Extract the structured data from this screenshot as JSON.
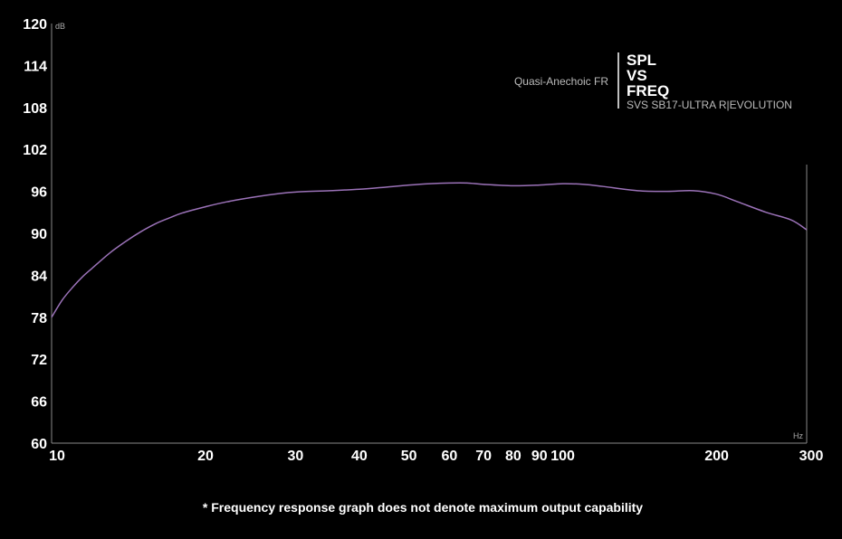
{
  "chart_data": {
    "type": "line",
    "subtitle": "Quasi-Anechoic FR",
    "title_lines": [
      "SPL",
      "VS",
      "FREQ"
    ],
    "model": "SVS SB17-ULTRA R|EVOLUTION",
    "ylabel": "dB",
    "xlabel": "Hz",
    "ylim": [
      60,
      120
    ],
    "xlim": [
      10,
      300
    ],
    "x_scale": "log",
    "y_ticks": [
      "120",
      "114",
      "108",
      "102",
      "96",
      "90",
      "84",
      "78",
      "72",
      "66",
      "60"
    ],
    "x_ticks": [
      "10",
      "20",
      "30",
      "40",
      "50",
      "60",
      "70",
      "80",
      "90",
      "100",
      "200",
      "300"
    ],
    "series": [
      {
        "color": "#9b72b8",
        "x": [
          10,
          10.5,
          11,
          11.5,
          12,
          13,
          14,
          15,
          16,
          17,
          18,
          20,
          22,
          25,
          28,
          30,
          35,
          40,
          45,
          50,
          55,
          60,
          65,
          70,
          80,
          90,
          100,
          110,
          120,
          140,
          160,
          180,
          200,
          220,
          250,
          280,
          300
        ],
        "y": [
          78.0,
          80.5,
          82.3,
          83.8,
          85.0,
          87.2,
          88.9,
          90.3,
          91.4,
          92.2,
          92.9,
          93.8,
          94.5,
          95.2,
          95.7,
          95.9,
          96.1,
          96.3,
          96.6,
          96.9,
          97.1,
          97.2,
          97.2,
          97.0,
          96.8,
          96.9,
          97.1,
          97.0,
          96.7,
          96.1,
          96.0,
          96.1,
          95.6,
          94.5,
          93.0,
          91.9,
          90.5
        ]
      }
    ]
  },
  "footnote": "* Frequency response graph does not denote maximum output capability",
  "colors": {
    "background": "#000000",
    "axis": "#888888",
    "curve": "#9b72b8",
    "text": "#ffffff"
  }
}
